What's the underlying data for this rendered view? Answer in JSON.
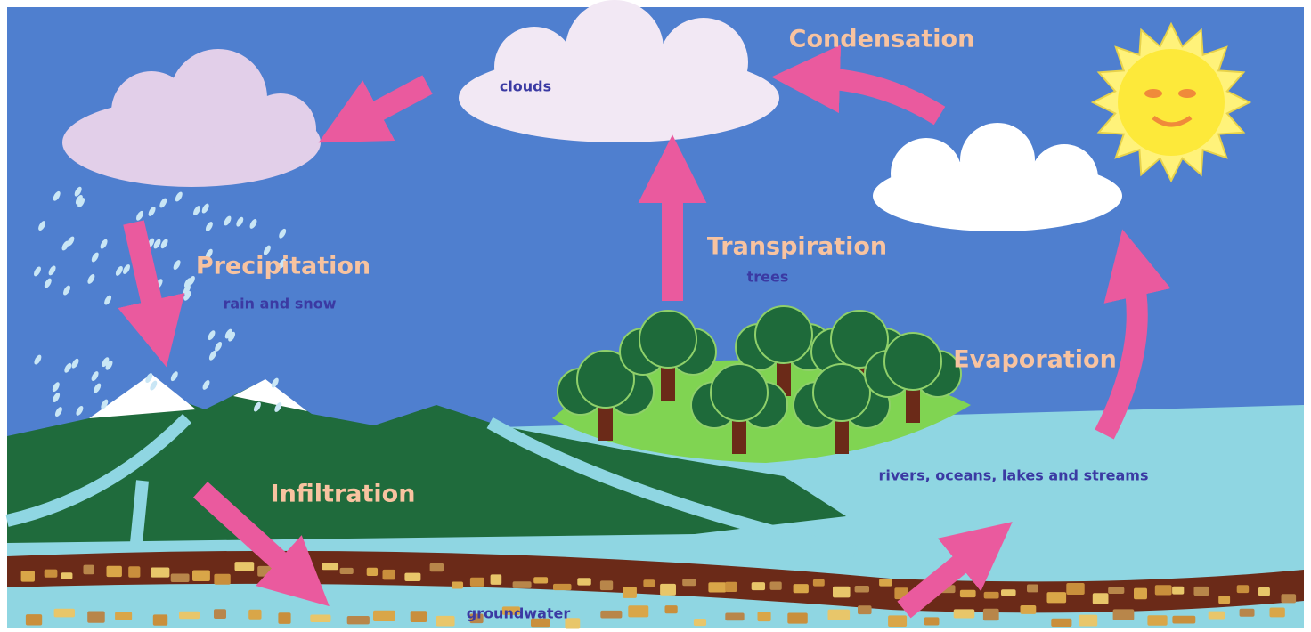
{
  "stages": [
    {
      "title": "Condensation"
    },
    {
      "title": "Precipitation",
      "caption": "rain and snow"
    },
    {
      "title": "Transpiration",
      "caption": "trees"
    },
    {
      "title": "Evaporation"
    },
    {
      "title": "Infiltration"
    }
  ],
  "places": [
    "clouds",
    "rivers, oceans, lakes and streams",
    "groundwater"
  ]
}
